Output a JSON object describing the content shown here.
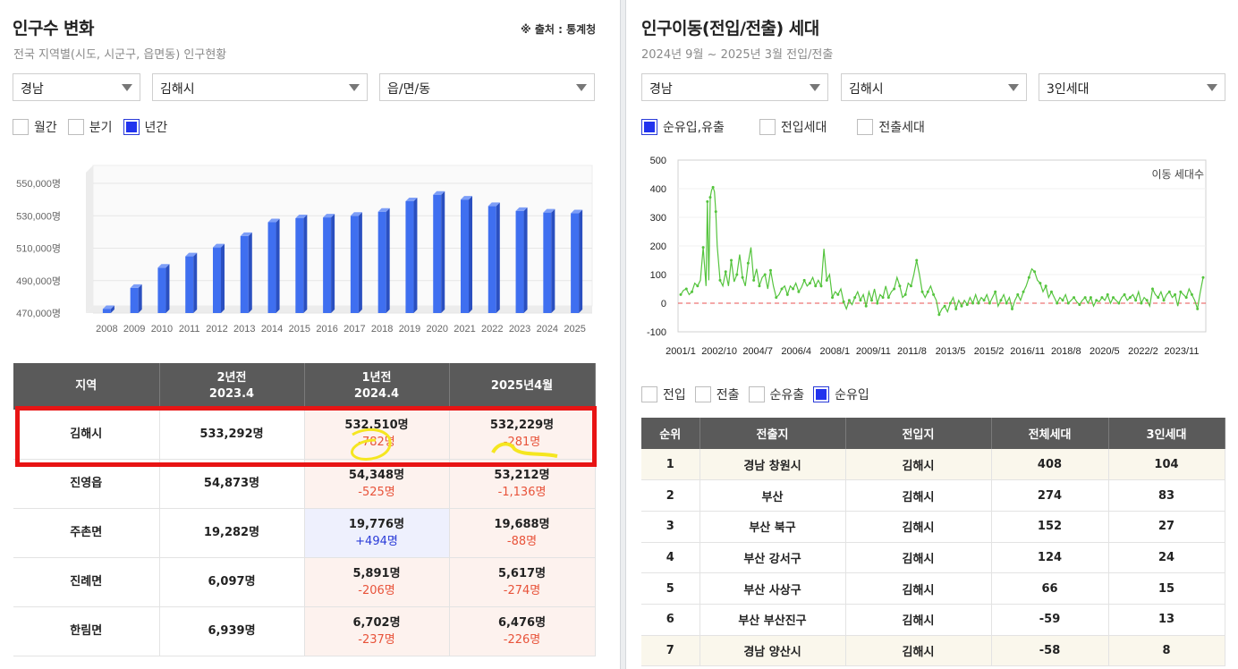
{
  "left": {
    "title": "인구수 변화",
    "source": "※ 출처 : 통계청",
    "subtitle": "전국 지역별(시도, 시군구, 읍면동) 인구현황",
    "selects": [
      "경남",
      "김해시",
      "읍/면/동"
    ],
    "period_options": [
      {
        "label": "월간",
        "checked": false
      },
      {
        "label": "분기",
        "checked": false
      },
      {
        "label": "년간",
        "checked": true
      }
    ],
    "table": {
      "headers": [
        {
          "line1": "지역",
          "line2": ""
        },
        {
          "line1": "2년전",
          "line2": "2023.4"
        },
        {
          "line1": "1년전",
          "line2": "2024.4"
        },
        {
          "line1": "2025년4월",
          "line2": ""
        }
      ],
      "rows": [
        {
          "region": "김해시",
          "y2": "533,292명",
          "y1": "532,510명",
          "y1_diff": "-782명",
          "y1_type": "dec",
          "cur": "532,229명",
          "cur_diff": "-281명",
          "cur_type": "dec"
        },
        {
          "region": "진영읍",
          "y2": "54,873명",
          "y1": "54,348명",
          "y1_diff": "-525명",
          "y1_type": "dec",
          "cur": "53,212명",
          "cur_diff": "-1,136명",
          "cur_type": "dec"
        },
        {
          "region": "주촌면",
          "y2": "19,282명",
          "y1": "19,776명",
          "y1_diff": "+494명",
          "y1_type": "inc",
          "cur": "19,688명",
          "cur_diff": "-88명",
          "cur_type": "dec"
        },
        {
          "region": "진례면",
          "y2": "6,097명",
          "y1": "5,891명",
          "y1_diff": "-206명",
          "y1_type": "dec",
          "cur": "5,617명",
          "cur_diff": "-274명",
          "cur_type": "dec"
        },
        {
          "region": "한림면",
          "y2": "6,939명",
          "y1": "6,702명",
          "y1_diff": "-237명",
          "y1_type": "dec",
          "cur": "6,476명",
          "cur_diff": "-226명",
          "cur_type": "dec"
        }
      ]
    }
  },
  "right": {
    "title": "인구이동(전입/전출) 세대",
    "subtitle": "2024년 9월 ~ 2025년 3월 전입/전출",
    "selects": [
      "경남",
      "김해시",
      "3인세대"
    ],
    "chart_options": [
      {
        "label": "순유입,유출",
        "checked": true
      },
      {
        "label": "전입세대",
        "checked": false
      },
      {
        "label": "전출세대",
        "checked": false
      }
    ],
    "table_options": [
      {
        "label": "전입",
        "checked": false
      },
      {
        "label": "전출",
        "checked": false
      },
      {
        "label": "순유출",
        "checked": false
      },
      {
        "label": "순유입",
        "checked": true
      }
    ],
    "table": {
      "headers": [
        "순위",
        "전출지",
        "전입지",
        "전체세대",
        "3인세대"
      ],
      "rows": [
        [
          "1",
          "경남 창원시",
          "김해시",
          "408",
          "104"
        ],
        [
          "2",
          "부산",
          "김해시",
          "274",
          "83"
        ],
        [
          "3",
          "부산 북구",
          "김해시",
          "152",
          "27"
        ],
        [
          "4",
          "부산 강서구",
          "김해시",
          "124",
          "24"
        ],
        [
          "5",
          "부산 사상구",
          "김해시",
          "66",
          "15"
        ],
        [
          "6",
          "부산 부산진구",
          "김해시",
          "-59",
          "13"
        ],
        [
          "7",
          "경남 양산시",
          "김해시",
          "-58",
          "8"
        ]
      ]
    }
  },
  "chart_data": [
    {
      "type": "bar",
      "title": "",
      "categories": [
        "2008",
        "2009",
        "2010",
        "2011",
        "2012",
        "2013",
        "2014",
        "2015",
        "2016",
        "2017",
        "2018",
        "2019",
        "2020",
        "2021",
        "2022",
        "2023",
        "2024",
        "2025"
      ],
      "values": [
        472500,
        485500,
        498000,
        505000,
        510500,
        517500,
        526000,
        528500,
        529000,
        530000,
        532500,
        539000,
        543000,
        540000,
        536000,
        533000,
        532000,
        531500
      ],
      "yticks": [
        "550,000명",
        "530,000명",
        "510,000명",
        "490,000명",
        "470,000명"
      ],
      "ylim": [
        470000,
        550000
      ],
      "color": "#3f6ff0"
    },
    {
      "type": "line",
      "legend": "이동 세대수",
      "xticks": [
        "2001/1",
        "2002/10",
        "2004/7",
        "2006/4",
        "2008/1",
        "2009/11",
        "2011/8",
        "2013/5",
        "2015/2",
        "2016/11",
        "2018/8",
        "2020/5",
        "2022/2",
        "2023/11"
      ],
      "yticks": [
        "500",
        "400",
        "300",
        "200",
        "100",
        "0",
        "-100"
      ],
      "ylim": [
        -100,
        500
      ],
      "x_range": [
        "2001/1",
        "2025/3"
      ],
      "color": "#55c43e",
      "zero_line_color": "#e85050",
      "series_points": [
        [
          0,
          30
        ],
        [
          2,
          45
        ],
        [
          4,
          50
        ],
        [
          6,
          30
        ],
        [
          8,
          40
        ],
        [
          10,
          70
        ],
        [
          12,
          60
        ],
        [
          14,
          80
        ],
        [
          16,
          195
        ],
        [
          18,
          60
        ],
        [
          19,
          355
        ],
        [
          20,
          80
        ],
        [
          21,
          370
        ],
        [
          22,
          395
        ],
        [
          23,
          405
        ],
        [
          24,
          390
        ],
        [
          25,
          320
        ],
        [
          26,
          200
        ],
        [
          28,
          80
        ],
        [
          30,
          60
        ],
        [
          32,
          110
        ],
        [
          34,
          60
        ],
        [
          36,
          150
        ],
        [
          38,
          75
        ],
        [
          40,
          100
        ],
        [
          42,
          170
        ],
        [
          44,
          90
        ],
        [
          46,
          60
        ],
        [
          48,
          140
        ],
        [
          50,
          195
        ],
        [
          52,
          80
        ],
        [
          54,
          120
        ],
        [
          56,
          60
        ],
        [
          58,
          90
        ],
        [
          60,
          100
        ],
        [
          62,
          50
        ],
        [
          64,
          115
        ],
        [
          66,
          60
        ],
        [
          68,
          20
        ],
        [
          70,
          30
        ],
        [
          72,
          50
        ],
        [
          74,
          60
        ],
        [
          76,
          30
        ],
        [
          78,
          60
        ],
        [
          80,
          50
        ],
        [
          82,
          70
        ],
        [
          84,
          40
        ],
        [
          86,
          55
        ],
        [
          88,
          80
        ],
        [
          90,
          60
        ],
        [
          92,
          70
        ],
        [
          94,
          90
        ],
        [
          96,
          60
        ],
        [
          98,
          80
        ],
        [
          100,
          60
        ],
        [
          102,
          190
        ],
        [
          104,
          80
        ],
        [
          106,
          100
        ],
        [
          108,
          20
        ],
        [
          110,
          40
        ],
        [
          112,
          30
        ],
        [
          114,
          50
        ],
        [
          116,
          5
        ],
        [
          118,
          -20
        ],
        [
          120,
          10
        ],
        [
          122,
          -5
        ],
        [
          124,
          20
        ],
        [
          126,
          40
        ],
        [
          128,
          10
        ],
        [
          130,
          30
        ],
        [
          132,
          -10
        ],
        [
          134,
          40
        ],
        [
          136,
          10
        ],
        [
          138,
          50
        ],
        [
          140,
          0
        ],
        [
          142,
          30
        ],
        [
          144,
          20
        ],
        [
          146,
          60
        ],
        [
          148,
          20
        ],
        [
          150,
          40
        ],
        [
          152,
          50
        ],
        [
          154,
          90
        ],
        [
          156,
          60
        ],
        [
          158,
          20
        ],
        [
          160,
          30
        ],
        [
          162,
          70
        ],
        [
          164,
          60
        ],
        [
          166,
          100
        ],
        [
          168,
          150
        ],
        [
          170,
          100
        ],
        [
          172,
          40
        ],
        [
          174,
          20
        ],
        [
          176,
          40
        ],
        [
          178,
          60
        ],
        [
          180,
          30
        ],
        [
          182,
          10
        ],
        [
          184,
          -40
        ],
        [
          186,
          -20
        ],
        [
          188,
          -10
        ],
        [
          190,
          -30
        ],
        [
          192,
          0
        ],
        [
          194,
          20
        ],
        [
          196,
          -20
        ],
        [
          198,
          10
        ],
        [
          200,
          -10
        ],
        [
          202,
          10
        ],
        [
          204,
          -5
        ],
        [
          206,
          20
        ],
        [
          208,
          0
        ],
        [
          210,
          30
        ],
        [
          212,
          0
        ],
        [
          214,
          20
        ],
        [
          216,
          10
        ],
        [
          218,
          30
        ],
        [
          220,
          0
        ],
        [
          222,
          20
        ],
        [
          224,
          40
        ],
        [
          226,
          -10
        ],
        [
          228,
          10
        ],
        [
          230,
          30
        ],
        [
          232,
          0
        ],
        [
          234,
          20
        ],
        [
          236,
          -20
        ],
        [
          238,
          10
        ],
        [
          240,
          30
        ],
        [
          242,
          10
        ],
        [
          244,
          40
        ],
        [
          246,
          60
        ],
        [
          248,
          90
        ],
        [
          250,
          120
        ],
        [
          252,
          110
        ],
        [
          254,
          80
        ],
        [
          256,
          70
        ],
        [
          258,
          40
        ],
        [
          260,
          60
        ],
        [
          262,
          20
        ],
        [
          264,
          40
        ],
        [
          266,
          20
        ],
        [
          268,
          0
        ],
        [
          270,
          20
        ],
        [
          272,
          10
        ],
        [
          274,
          30
        ],
        [
          276,
          0
        ],
        [
          278,
          10
        ],
        [
          280,
          20
        ],
        [
          282,
          5
        ],
        [
          284,
          -5
        ],
        [
          286,
          10
        ],
        [
          288,
          20
        ],
        [
          290,
          0
        ],
        [
          292,
          20
        ],
        [
          294,
          -10
        ],
        [
          296,
          10
        ],
        [
          298,
          5
        ],
        [
          300,
          20
        ],
        [
          302,
          10
        ],
        [
          304,
          30
        ],
        [
          306,
          0
        ],
        [
          308,
          20
        ],
        [
          310,
          10
        ],
        [
          312,
          0
        ],
        [
          314,
          20
        ],
        [
          316,
          30
        ],
        [
          318,
          10
        ],
        [
          320,
          20
        ],
        [
          322,
          30
        ],
        [
          324,
          10
        ],
        [
          326,
          40
        ],
        [
          328,
          0
        ],
        [
          330,
          20
        ],
        [
          332,
          10
        ],
        [
          334,
          -10
        ],
        [
          336,
          50
        ],
        [
          338,
          30
        ],
        [
          340,
          20
        ],
        [
          342,
          40
        ],
        [
          344,
          10
        ],
        [
          346,
          30
        ],
        [
          348,
          40
        ],
        [
          350,
          20
        ],
        [
          352,
          30
        ],
        [
          354,
          -10
        ],
        [
          356,
          40
        ],
        [
          358,
          30
        ],
        [
          360,
          20
        ],
        [
          362,
          50
        ],
        [
          364,
          30
        ],
        [
          366,
          10
        ],
        [
          368,
          -20
        ],
        [
          370,
          40
        ],
        [
          372,
          90
        ]
      ]
    }
  ]
}
